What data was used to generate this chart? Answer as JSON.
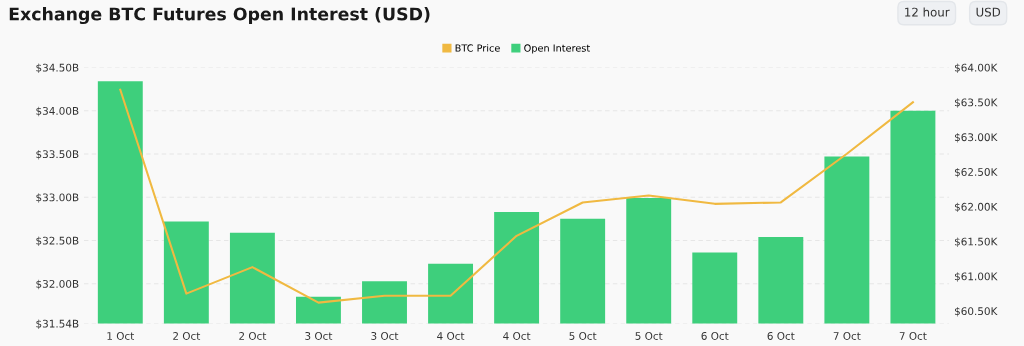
{
  "chart_data": {
    "type": "bar",
    "title": "Exchange BTC Futures Open Interest (USD)",
    "annotations": [
      "12 hour",
      "USD"
    ],
    "categories": [
      "1 Oct",
      "2 Oct",
      "2 Oct",
      "3 Oct",
      "3 Oct",
      "4 Oct",
      "4 Oct",
      "5 Oct",
      "5 Oct",
      "6 Oct",
      "6 Oct",
      "7 Oct",
      "7 Oct"
    ],
    "series": [
      {
        "name": "BTC Price",
        "type": "line",
        "axis": "y2",
        "color": "#f0b941",
        "values": [
          63.68,
          60.75,
          61.13,
          60.62,
          60.72,
          60.72,
          61.58,
          62.06,
          62.16,
          62.04,
          62.06,
          62.76,
          63.5
        ]
      },
      {
        "name": "Open Interest",
        "color": "#3ecf7c",
        "values": [
          34.34,
          32.72,
          32.59,
          31.85,
          32.03,
          32.23,
          32.83,
          32.75,
          32.99,
          32.36,
          32.54,
          33.47,
          34.0
        ]
      }
    ],
    "ylim": [
      31.54,
      34.5
    ],
    "yticks": [
      {
        "value": 31.54,
        "label": "$31.54B"
      },
      {
        "value": 32.0,
        "label": "$32.00B"
      },
      {
        "value": 32.5,
        "label": "$32.50B"
      },
      {
        "value": 33.0,
        "label": "$33.00B"
      },
      {
        "value": 33.5,
        "label": "$33.50B"
      },
      {
        "value": 34.0,
        "label": "$34.00B"
      },
      {
        "value": 34.5,
        "label": "$34.50B"
      }
    ],
    "y2lim": [
      60.32,
      64.0
    ],
    "y2ticks": [
      {
        "value": 60.5,
        "label": "$60.50K"
      },
      {
        "value": 61.0,
        "label": "$61.00K"
      },
      {
        "value": 61.5,
        "label": "$61.50K"
      },
      {
        "value": 62.0,
        "label": "$62.00K"
      },
      {
        "value": 62.5,
        "label": "$62.50K"
      },
      {
        "value": 63.0,
        "label": "$63.00K"
      },
      {
        "value": 63.5,
        "label": "$63.50K"
      },
      {
        "value": 64.0,
        "label": "$64.00K"
      }
    ],
    "grid": "y",
    "legend": "top",
    "marker": "none",
    "line_style": "solid"
  }
}
